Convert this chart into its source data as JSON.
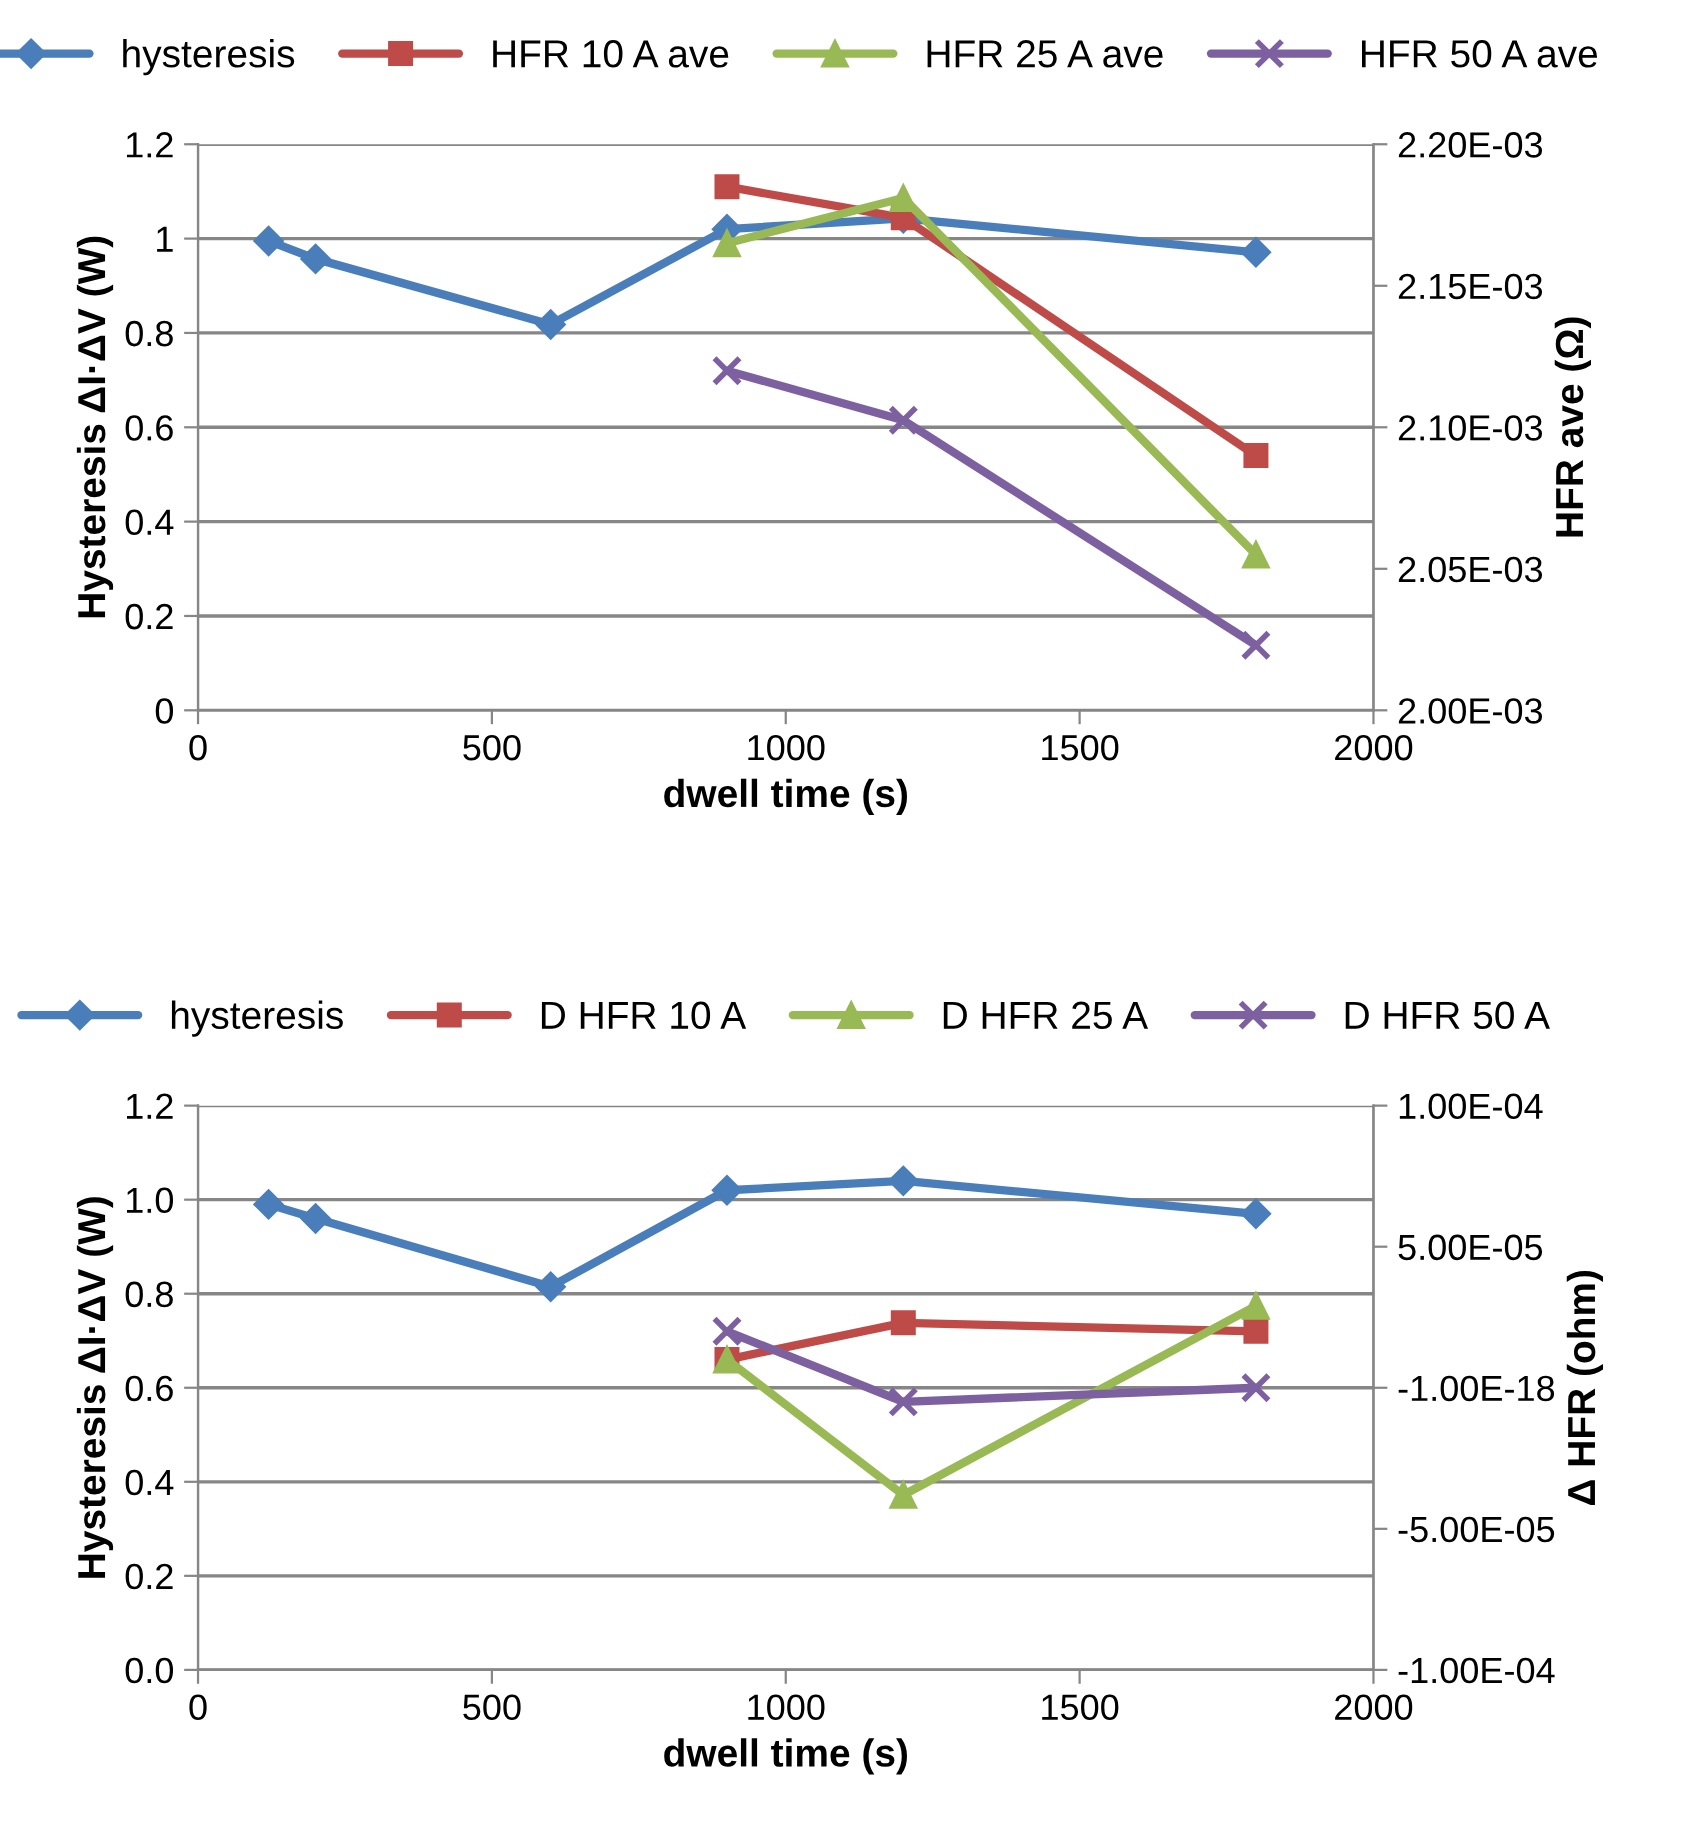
{
  "chart_data": [
    {
      "type": "line",
      "xlabel": "dwell time (s)",
      "ylabel": "Hysteresis ΔI·ΔV (W)",
      "y2label": "HFR ave (Ω)",
      "legend": "top",
      "grid": "y",
      "xlim": [
        0,
        2000
      ],
      "xticks": [
        0,
        500,
        1000,
        1500,
        2000
      ],
      "ylim": [
        0,
        1.2
      ],
      "yticks": [
        0,
        0.2,
        0.4,
        0.6,
        0.8,
        1,
        1.2
      ],
      "y2lim": [
        0.002,
        0.0022
      ],
      "y2ticks": [
        {
          "value": 0.002,
          "label": "2.00E-03"
        },
        {
          "value": 0.00205,
          "label": "2.05E-03"
        },
        {
          "value": 0.0021,
          "label": "2.10E-03"
        },
        {
          "value": 0.00215,
          "label": "2.15E-03"
        },
        {
          "value": 0.0022,
          "label": "2.20E-03"
        }
      ],
      "series": [
        {
          "name": "hysteresis",
          "color": "#4a7ebb",
          "marker": "diamond",
          "x": [
            120,
            200,
            600,
            900,
            1200,
            1800
          ],
          "values": [
            0.995,
            0.957,
            0.818,
            1.02,
            1.043,
            0.971
          ]
        },
        {
          "name": "HFR 10 A ave",
          "color": "#be4b48",
          "marker": "square",
          "axis": "y2",
          "x": [
            900,
            1200,
            1800
          ],
          "values": [
            0.002185,
            0.002174,
            0.00209
          ]
        },
        {
          "name": "HFR 25 A ave",
          "color": "#98b954",
          "marker": "triangle",
          "axis": "y2",
          "x": [
            900,
            1200,
            1800
          ],
          "values": [
            0.002165,
            0.002181,
            0.002055
          ]
        },
        {
          "name": "HFR 50 A ave",
          "color": "#7d60a0",
          "marker": "cross",
          "axis": "y2",
          "x": [
            900,
            1200,
            1800
          ],
          "values": [
            0.00212,
            0.0021025,
            0.002023
          ]
        }
      ]
    },
    {
      "type": "line",
      "xlabel": "dwell time (s)",
      "ylabel": "Hysteresis ΔI·ΔV (W)",
      "y2label": "Δ HFR (ohm)",
      "legend": "top",
      "grid": "y",
      "xlim": [
        0,
        2000
      ],
      "xticks": [
        0,
        500,
        1000,
        1500,
        2000
      ],
      "ylim": [
        0,
        1.2
      ],
      "yticks": [
        {
          "value": 0,
          "label": "0.0"
        },
        0.2,
        0.4,
        0.6,
        0.8,
        {
          "value": 1,
          "label": "1.0"
        },
        1.2
      ],
      "y2lim": [
        -0.0001,
        0.0001
      ],
      "y2ticks": [
        {
          "value": -0.0001,
          "label": "-1.00E-04"
        },
        {
          "value": -5e-05,
          "label": "-5.00E-05"
        },
        {
          "value": -1e-18,
          "label": "-1.00E-18"
        },
        {
          "value": 5e-05,
          "label": "5.00E-05"
        },
        {
          "value": 0.0001,
          "label": "1.00E-04"
        }
      ],
      "series": [
        {
          "name": "hysteresis",
          "color": "#4a7ebb",
          "marker": "diamond",
          "x": [
            120,
            200,
            600,
            900,
            1200,
            1800
          ],
          "values": [
            0.99,
            0.96,
            0.815,
            1.02,
            1.04,
            0.97
          ]
        },
        {
          "name": "D HFR 10 A",
          "color": "#be4b48",
          "marker": "square",
          "axis": "y2",
          "x": [
            900,
            1200,
            1800
          ],
          "values": [
            1e-05,
            2.3e-05,
            2e-05
          ]
        },
        {
          "name": "D HFR 25 A",
          "color": "#98b954",
          "marker": "triangle",
          "axis": "y2",
          "x": [
            900,
            1200,
            1800
          ],
          "values": [
            1e-05,
            -3.8e-05,
            2.9e-05
          ]
        },
        {
          "name": "D HFR 50 A",
          "color": "#7d60a0",
          "marker": "cross",
          "axis": "y2",
          "x": [
            900,
            1200,
            1800
          ],
          "values": [
            2e-05,
            -5e-06,
            0.0
          ]
        }
      ]
    }
  ]
}
